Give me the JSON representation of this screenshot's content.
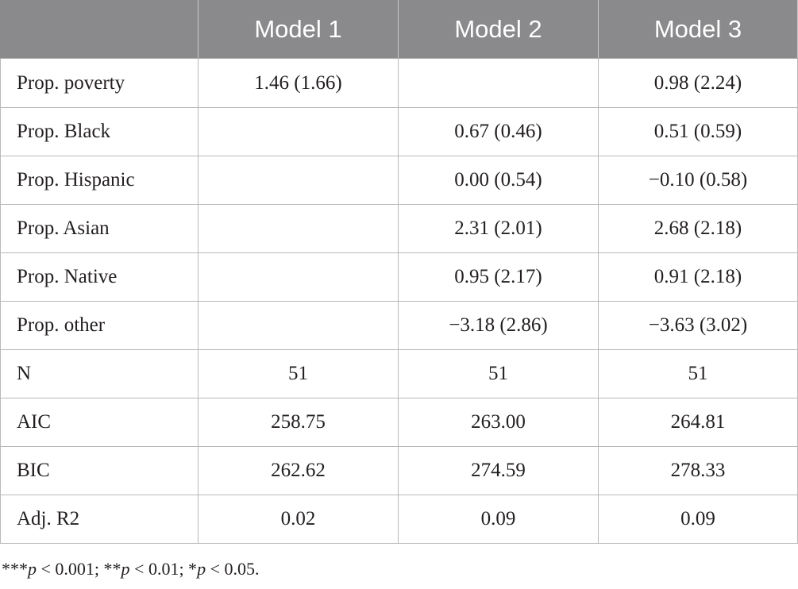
{
  "table": {
    "headers": [
      "",
      "Model 1",
      "Model 2",
      "Model 3"
    ],
    "rows": [
      {
        "label": "Prop. poverty",
        "m1": "1.46 (1.66)",
        "m2": "",
        "m3": "0.98 (2.24)"
      },
      {
        "label": "Prop. Black",
        "m1": "",
        "m2": "0.67 (0.46)",
        "m3": "0.51 (0.59)"
      },
      {
        "label": "Prop. Hispanic",
        "m1": "",
        "m2": "0.00 (0.54)",
        "m3": "−0.10 (0.58)"
      },
      {
        "label": "Prop. Asian",
        "m1": "",
        "m2": "2.31 (2.01)",
        "m3": "2.68 (2.18)"
      },
      {
        "label": "Prop. Native",
        "m1": "",
        "m2": "0.95 (2.17)",
        "m3": "0.91 (2.18)"
      },
      {
        "label": "Prop. other",
        "m1": "",
        "m2": "−3.18 (2.86)",
        "m3": "−3.63 (3.02)"
      },
      {
        "label": "N",
        "m1": "51",
        "m2": "51",
        "m3": "51"
      },
      {
        "label": "AIC",
        "m1": "258.75",
        "m2": "263.00",
        "m3": "264.81"
      },
      {
        "label": "BIC",
        "m1": "262.62",
        "m2": "274.59",
        "m3": "278.33"
      },
      {
        "label": "Adj. R2",
        "m1": "0.02",
        "m2": "0.09",
        "m3": "0.09"
      }
    ]
  },
  "footnote": {
    "parts": [
      {
        "text": "***",
        "italic": false
      },
      {
        "text": "p",
        "italic": true
      },
      {
        "text": " < 0.001; **",
        "italic": false
      },
      {
        "text": "p",
        "italic": true
      },
      {
        "text": " < 0.01; *",
        "italic": false
      },
      {
        "text": "p",
        "italic": true
      },
      {
        "text": " < 0.05.",
        "italic": false
      }
    ]
  }
}
